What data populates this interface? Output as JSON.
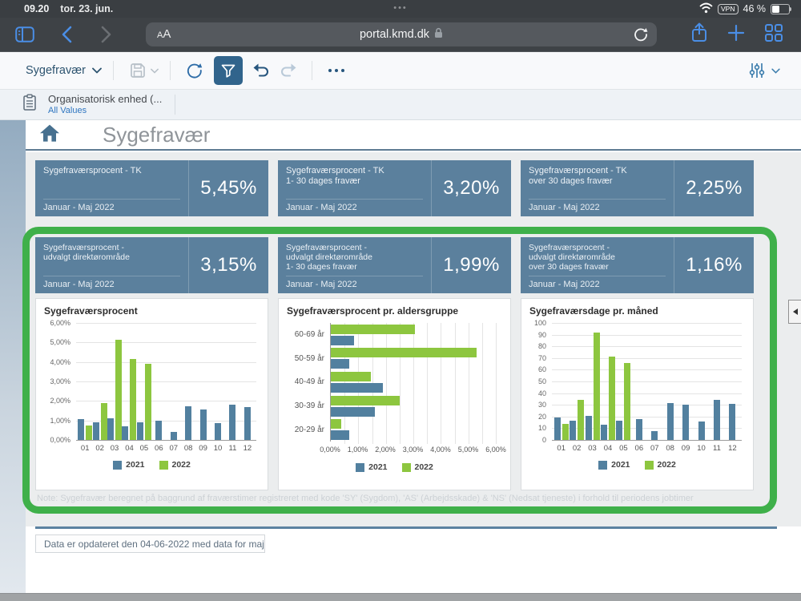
{
  "status_bar": {
    "time": "09.20",
    "date": "tor. 23. jun.",
    "vpn_label": "VPN",
    "battery_text": "46 %"
  },
  "browser": {
    "reader_small": "A",
    "reader_large": "A",
    "url": "portal.kmd.dk"
  },
  "toolbar": {
    "app_menu_label": "Sygefravær"
  },
  "filter_bar": {
    "label": "Organisatorisk enhed (...",
    "value": "All Values"
  },
  "page": {
    "title": "Sygefravær",
    "note": "Note: Sygefravær beregnet på baggrund af fraværstimer registreret med kode 'SY' (Sygdom), 'AS' (Arbejdsskade) & 'NS' (Nedsat tjeneste) i forhold til periodens jobtimer",
    "updated": "Data er opdateret den 04-06-2022 med data for maj"
  },
  "kpi_rows": [
    {
      "cards": [
        {
          "title_lines": [
            "Sygefraværsprocent - TK"
          ],
          "period": "Januar - Maj 2022",
          "value": "5,45%"
        },
        {
          "title_lines": [
            "Sygefraværsprocent - TK",
            "1- 30 dages fravær"
          ],
          "period": "Januar - Maj 2022",
          "value": "3,20%"
        },
        {
          "title_lines": [
            "Sygefraværsprocent - TK",
            "over 30 dages fravær"
          ],
          "period": "Januar - Maj 2022",
          "value": "2,25%"
        }
      ]
    },
    {
      "cards": [
        {
          "title_lines": [
            "Sygefraværsprocent -",
            "udvalgt direktørområde"
          ],
          "period": "Januar - Maj 2022",
          "value": "3,15%"
        },
        {
          "title_lines": [
            "Sygefraværsprocent -",
            "udvalgt direktørområde",
            "1- 30 dages fravær"
          ],
          "period": "Januar - Maj 2022",
          "value": "1,99%"
        },
        {
          "title_lines": [
            "Sygefraværsprocent -",
            "udvalgt direktørområde",
            "over 30 dages fravær"
          ],
          "period": "Januar - Maj 2022",
          "value": "1,16%"
        }
      ]
    }
  ],
  "chart_data": [
    {
      "type": "bar",
      "title": "Sygefraværsprocent",
      "categories": [
        "01",
        "02",
        "03",
        "04",
        "05",
        "06",
        "07",
        "08",
        "09",
        "10",
        "11",
        "12"
      ],
      "series": [
        {
          "name": "2021",
          "values": [
            1.05,
            0.92,
            1.12,
            0.7,
            0.92,
            1.0,
            0.42,
            1.72,
            1.58,
            0.85,
            1.82,
            1.7
          ]
        },
        {
          "name": "2022",
          "values": [
            0.76,
            1.9,
            5.15,
            4.15,
            3.9,
            null,
            null,
            null,
            null,
            null,
            null,
            null
          ]
        }
      ],
      "ylim": [
        0,
        6
      ],
      "ytick_labels": [
        "0,00%",
        "1,00%",
        "2,00%",
        "3,00%",
        "4,00%",
        "5,00%",
        "6,00%"
      ],
      "legend": [
        "2021",
        "2022"
      ],
      "grid": true,
      "legend_position": "bottom"
    },
    {
      "type": "hbar",
      "title": "Sygefraværsprocent pr. aldersgruppe",
      "categories": [
        "60-69 år",
        "50-59 år",
        "40-49 år",
        "30-39 år",
        "20-29 år"
      ],
      "series": [
        {
          "name": "2021",
          "values": [
            0.85,
            0.68,
            1.9,
            1.6,
            0.68
          ]
        },
        {
          "name": "2022",
          "values": [
            3.05,
            5.3,
            1.45,
            2.5,
            0.38
          ]
        }
      ],
      "xlim": [
        0,
        6
      ],
      "xtick_labels": [
        "0,00%",
        "1,00%",
        "2,00%",
        "3,00%",
        "4,00%",
        "5,00%",
        "6,00%"
      ],
      "gridline_step": 0.5,
      "legend": [
        "2021",
        "2022"
      ],
      "grid": true,
      "legend_position": "bottom"
    },
    {
      "type": "bar",
      "title": "Sygefraværsdage pr. måned",
      "categories": [
        "01",
        "02",
        "03",
        "04",
        "05",
        "06",
        "07",
        "08",
        "09",
        "10",
        "11",
        "12"
      ],
      "series": [
        {
          "name": "2021",
          "values": [
            19.5,
            16.5,
            20.5,
            13,
            16.5,
            18,
            7.5,
            31.5,
            30,
            16,
            34.5,
            31
          ]
        },
        {
          "name": "2022",
          "values": [
            13.5,
            34,
            92,
            71.5,
            66,
            null,
            null,
            null,
            null,
            null,
            null,
            null
          ]
        }
      ],
      "ylim": [
        0,
        100
      ],
      "ytick_labels": [
        "0",
        "10",
        "20",
        "30",
        "40",
        "50",
        "60",
        "70",
        "80",
        "90",
        "100"
      ],
      "legend": [
        "2021",
        "2022"
      ],
      "grid": true,
      "legend_position": "bottom"
    }
  ],
  "colors": {
    "bar_2021": "#52809f",
    "bar_2022": "#8dc63f",
    "kpi_bg": "#5b809d",
    "highlight_green": "#3fb04a",
    "ios_accent_blue": "#4a8ee6",
    "toolbar_blue": "#27567e",
    "link_blue": "#2e75c0"
  }
}
